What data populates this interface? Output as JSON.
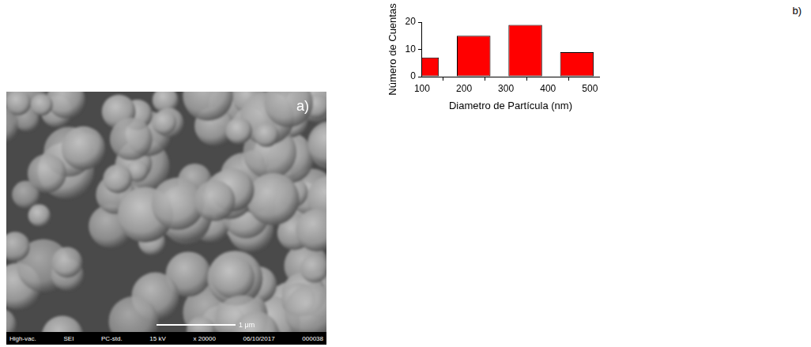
{
  "chart_data": {
    "type": "bar",
    "panel": "b)",
    "x_label": "Diametro de Partícula (nm)",
    "y_label": "Número de Cuentas",
    "x": [
      100,
      223,
      346,
      469
    ],
    "values": [
      7,
      15,
      19,
      9
    ],
    "color": "#ff0000",
    "xlim": [
      100,
      522
    ],
    "xticks": [
      100,
      200,
      300,
      400,
      500
    ],
    "ylim": [
      0,
      20
    ],
    "yticks": [
      0,
      10,
      20
    ],
    "grid": false
  },
  "image_panel": {
    "panel": "a)",
    "scale_bar": "1 μm",
    "info_bar": [
      "High-vac.",
      "SEI",
      "PC-std.",
      "15 kV",
      "x 20000",
      "06/10/2017",
      "000038"
    ]
  }
}
